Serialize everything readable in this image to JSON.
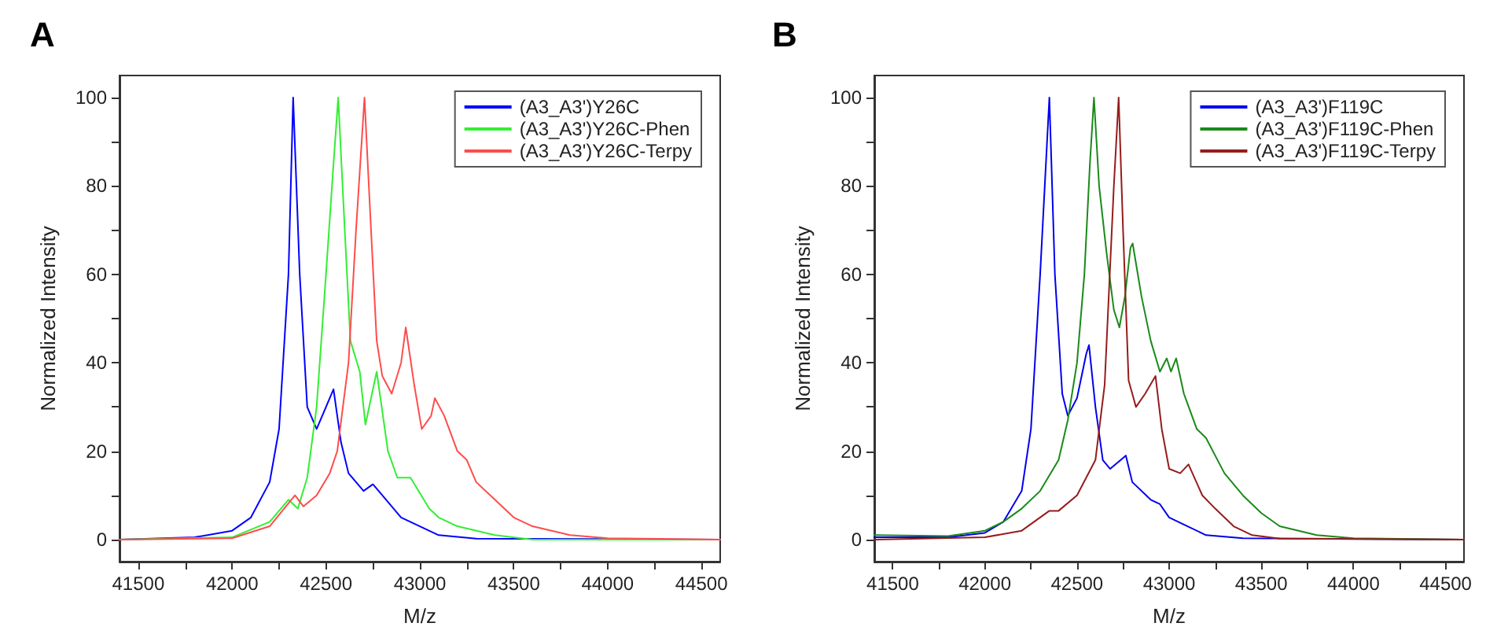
{
  "chart_data": [
    {
      "type": "line",
      "title": "A",
      "xlabel": "M/z",
      "ylabel": "Normalized Intensity",
      "xlim": [
        41400,
        44600
      ],
      "ylim": [
        -5,
        105
      ],
      "xticks": [
        41500,
        {
          "value": 41750,
          "label": null
        },
        42000,
        {
          "value": 42250,
          "label": null
        },
        42500,
        {
          "value": 42750,
          "label": null
        },
        43000,
        {
          "value": 43250,
          "label": null
        },
        43500,
        {
          "value": 43750,
          "label": null
        },
        44000,
        {
          "value": 44250,
          "label": null
        },
        44500
      ],
      "yticks": [
        0,
        {
          "value": 10,
          "label": null
        },
        20,
        {
          "value": 30,
          "label": null
        },
        40,
        {
          "value": 50,
          "label": null
        },
        60,
        {
          "value": 70,
          "label": null
        },
        80,
        {
          "value": 90,
          "label": null
        },
        100
      ],
      "grid": false,
      "legend": "top right",
      "marker": "none",
      "line_style": "solid",
      "series": [
        {
          "name": "(A3_A3')Y26C",
          "color": "#0000ff",
          "x": [
            41400,
            41800,
            42000,
            42100,
            42200,
            42250,
            42300,
            42325,
            42360,
            42400,
            42450,
            42500,
            42540,
            42580,
            42620,
            42700,
            42750,
            42800,
            42900,
            43000,
            43100,
            43300,
            44600
          ],
          "values": [
            0,
            0.5,
            2,
            5,
            13,
            25,
            60,
            100,
            60,
            30,
            25,
            30,
            34,
            22,
            15,
            11,
            12.5,
            10,
            5,
            3,
            1,
            0.2,
            0
          ]
        },
        {
          "name": "(A3_A3')Y26C-Phen",
          "color": "#33ee33",
          "x": [
            41400,
            42000,
            42200,
            42300,
            42350,
            42400,
            42450,
            42500,
            42540,
            42565,
            42600,
            42630,
            42680,
            42710,
            42770,
            42830,
            42880,
            42950,
            43050,
            43100,
            43200,
            43400,
            43600,
            44600
          ],
          "values": [
            0,
            0.5,
            4,
            9,
            7,
            14,
            30,
            60,
            85,
            100,
            70,
            45,
            38,
            26,
            38,
            20,
            14,
            14,
            7,
            5,
            3,
            1,
            0,
            0
          ]
        },
        {
          "name": "(A3_A3')Y26C-Terpy",
          "color": "#ff4c4c",
          "x": [
            41400,
            42000,
            42200,
            42335,
            42380,
            42450,
            42520,
            42560,
            42620,
            42660,
            42705,
            42740,
            42770,
            42800,
            42850,
            42900,
            42925,
            42970,
            43010,
            43060,
            43080,
            43130,
            43200,
            43250,
            43300,
            43400,
            43500,
            43600,
            43800,
            44000,
            44600
          ],
          "values": [
            0,
            0.3,
            3,
            10,
            7.5,
            10,
            15,
            20,
            40,
            70,
            100,
            70,
            45,
            37,
            33,
            40,
            48,
            35,
            25,
            28,
            32,
            28,
            20,
            18,
            13,
            9,
            5,
            3,
            1,
            0.3,
            0
          ]
        }
      ]
    },
    {
      "type": "line",
      "title": "B",
      "xlabel": "M/z",
      "ylabel": "Normalized Intensity",
      "xlim": [
        41400,
        44600
      ],
      "ylim": [
        -5,
        105
      ],
      "xticks": [
        41500,
        {
          "value": 41750,
          "label": null
        },
        42000,
        {
          "value": 42250,
          "label": null
        },
        42500,
        {
          "value": 42750,
          "label": null
        },
        43000,
        {
          "value": 43250,
          "label": null
        },
        43500,
        {
          "value": 43750,
          "label": null
        },
        44000,
        {
          "value": 44250,
          "label": null
        },
        44500
      ],
      "yticks": [
        0,
        {
          "value": 10,
          "label": null
        },
        20,
        {
          "value": 30,
          "label": null
        },
        40,
        {
          "value": 50,
          "label": null
        },
        60,
        {
          "value": 70,
          "label": null
        },
        80,
        {
          "value": 90,
          "label": null
        },
        100
      ],
      "grid": false,
      "legend": "top right",
      "marker": "none",
      "line_style": "solid",
      "series": [
        {
          "name": "(A3_A3')F119C",
          "color": "#0000ee",
          "x": [
            41400,
            41800,
            42000,
            42100,
            42200,
            42250,
            42300,
            42350,
            42380,
            42420,
            42450,
            42500,
            42550,
            42565,
            42600,
            42640,
            42680,
            42765,
            42800,
            42900,
            42950,
            43000,
            43100,
            43200,
            43400,
            44600
          ],
          "values": [
            0.5,
            0.5,
            1.5,
            4,
            11,
            25,
            60,
            100,
            60,
            33,
            28,
            32,
            42,
            44,
            30,
            18,
            16,
            19,
            13,
            9,
            8,
            5,
            3,
            1,
            0.3,
            0
          ]
        },
        {
          "name": "(A3_A3')F119C-Phen",
          "color": "#1a8a1a",
          "x": [
            41400,
            41800,
            42000,
            42100,
            42200,
            42300,
            42400,
            42450,
            42500,
            42540,
            42570,
            42592,
            42620,
            42660,
            42700,
            42730,
            42760,
            42790,
            42802,
            42850,
            42900,
            42950,
            42987,
            43010,
            43038,
            43080,
            43150,
            43200,
            43300,
            43400,
            43500,
            43600,
            43800,
            44000,
            44600
          ],
          "values": [
            1,
            0.8,
            2,
            4,
            7,
            11,
            18,
            27,
            40,
            60,
            85,
            100,
            80,
            65,
            52,
            48,
            55,
            66,
            67,
            55,
            45,
            38,
            41,
            38,
            41,
            33,
            25,
            23,
            15,
            10,
            6,
            3,
            1,
            0.3,
            0
          ]
        },
        {
          "name": "(A3_A3')F119C-Terpy",
          "color": "#961c1c",
          "x": [
            41400,
            42000,
            42200,
            42350,
            42400,
            42500,
            42600,
            42650,
            42700,
            42726,
            42750,
            42780,
            42820,
            42870,
            42926,
            42960,
            43000,
            43060,
            43105,
            43180,
            43250,
            43350,
            43450,
            43600,
            44600
          ],
          "values": [
            0,
            0.5,
            2,
            6.5,
            6.5,
            10,
            18,
            35,
            80,
            100,
            70,
            36,
            30,
            33,
            37,
            25,
            16,
            15,
            17,
            10,
            7,
            3,
            1,
            0.2,
            0
          ]
        }
      ]
    }
  ]
}
